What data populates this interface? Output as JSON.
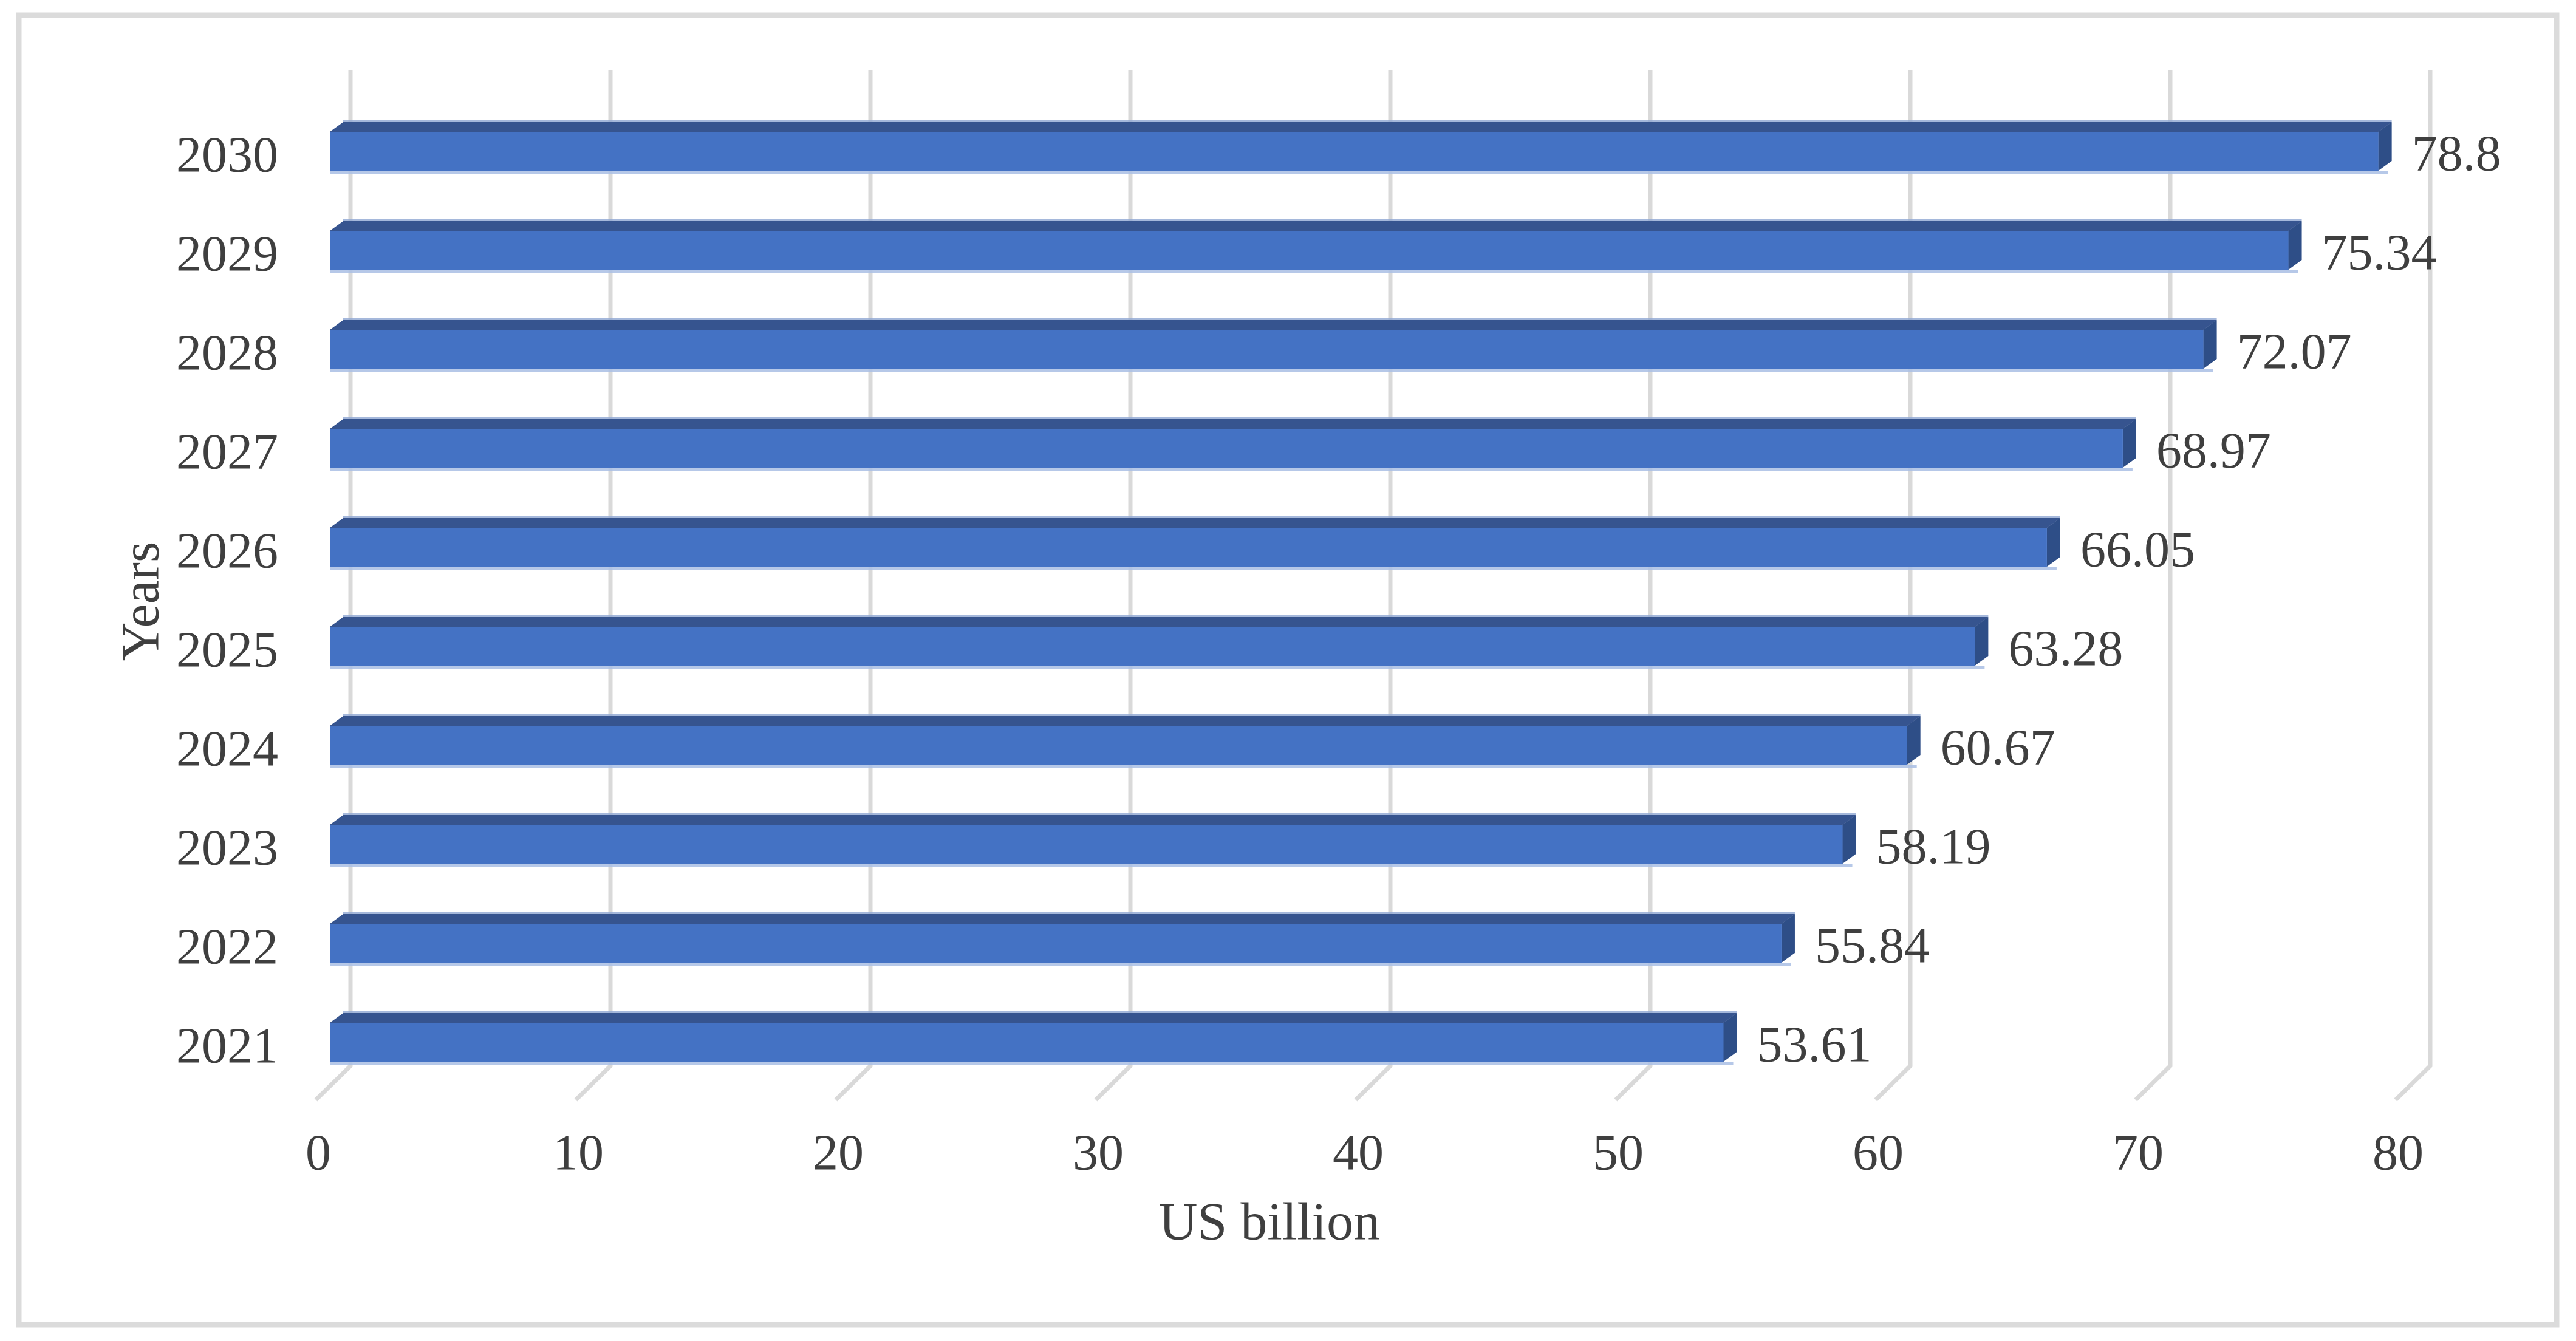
{
  "chart_data": {
    "type": "bar",
    "orientation": "horizontal",
    "style": "3d-extruded-excel",
    "title": "",
    "xlabel": "US billion",
    "ylabel": "Years",
    "categories": [
      "2030",
      "2029",
      "2028",
      "2027",
      "2026",
      "2025",
      "2024",
      "2023",
      "2022",
      "2021"
    ],
    "values": [
      78.8,
      75.34,
      72.07,
      68.97,
      66.05,
      63.28,
      60.67,
      58.19,
      55.84,
      53.61
    ],
    "value_labels": [
      "78.8",
      "75.34",
      "72.07",
      "68.97",
      "66.05",
      "63.28",
      "60.67",
      "58.19",
      "55.84",
      "53.61"
    ],
    "x_ticks": [
      "0",
      "10",
      "20",
      "30",
      "40",
      "50",
      "60",
      "70",
      "80"
    ],
    "x_tick_values": [
      0,
      10,
      20,
      30,
      40,
      50,
      60,
      70,
      80
    ],
    "xlim": [
      0,
      85
    ],
    "grid": true,
    "legend": "none",
    "colors": {
      "bar_face": "#4472C4",
      "bar_top": "#36548F",
      "bar_side": "#2E4E87",
      "bar_edge_light": "#A9BEE4",
      "bar_top_edge_light": "#8FA6D2",
      "gridline": "#D9D9D9",
      "text": "#3F3F3F",
      "frame_border": "#DBDBDB",
      "background": "#FFFFFF"
    }
  }
}
